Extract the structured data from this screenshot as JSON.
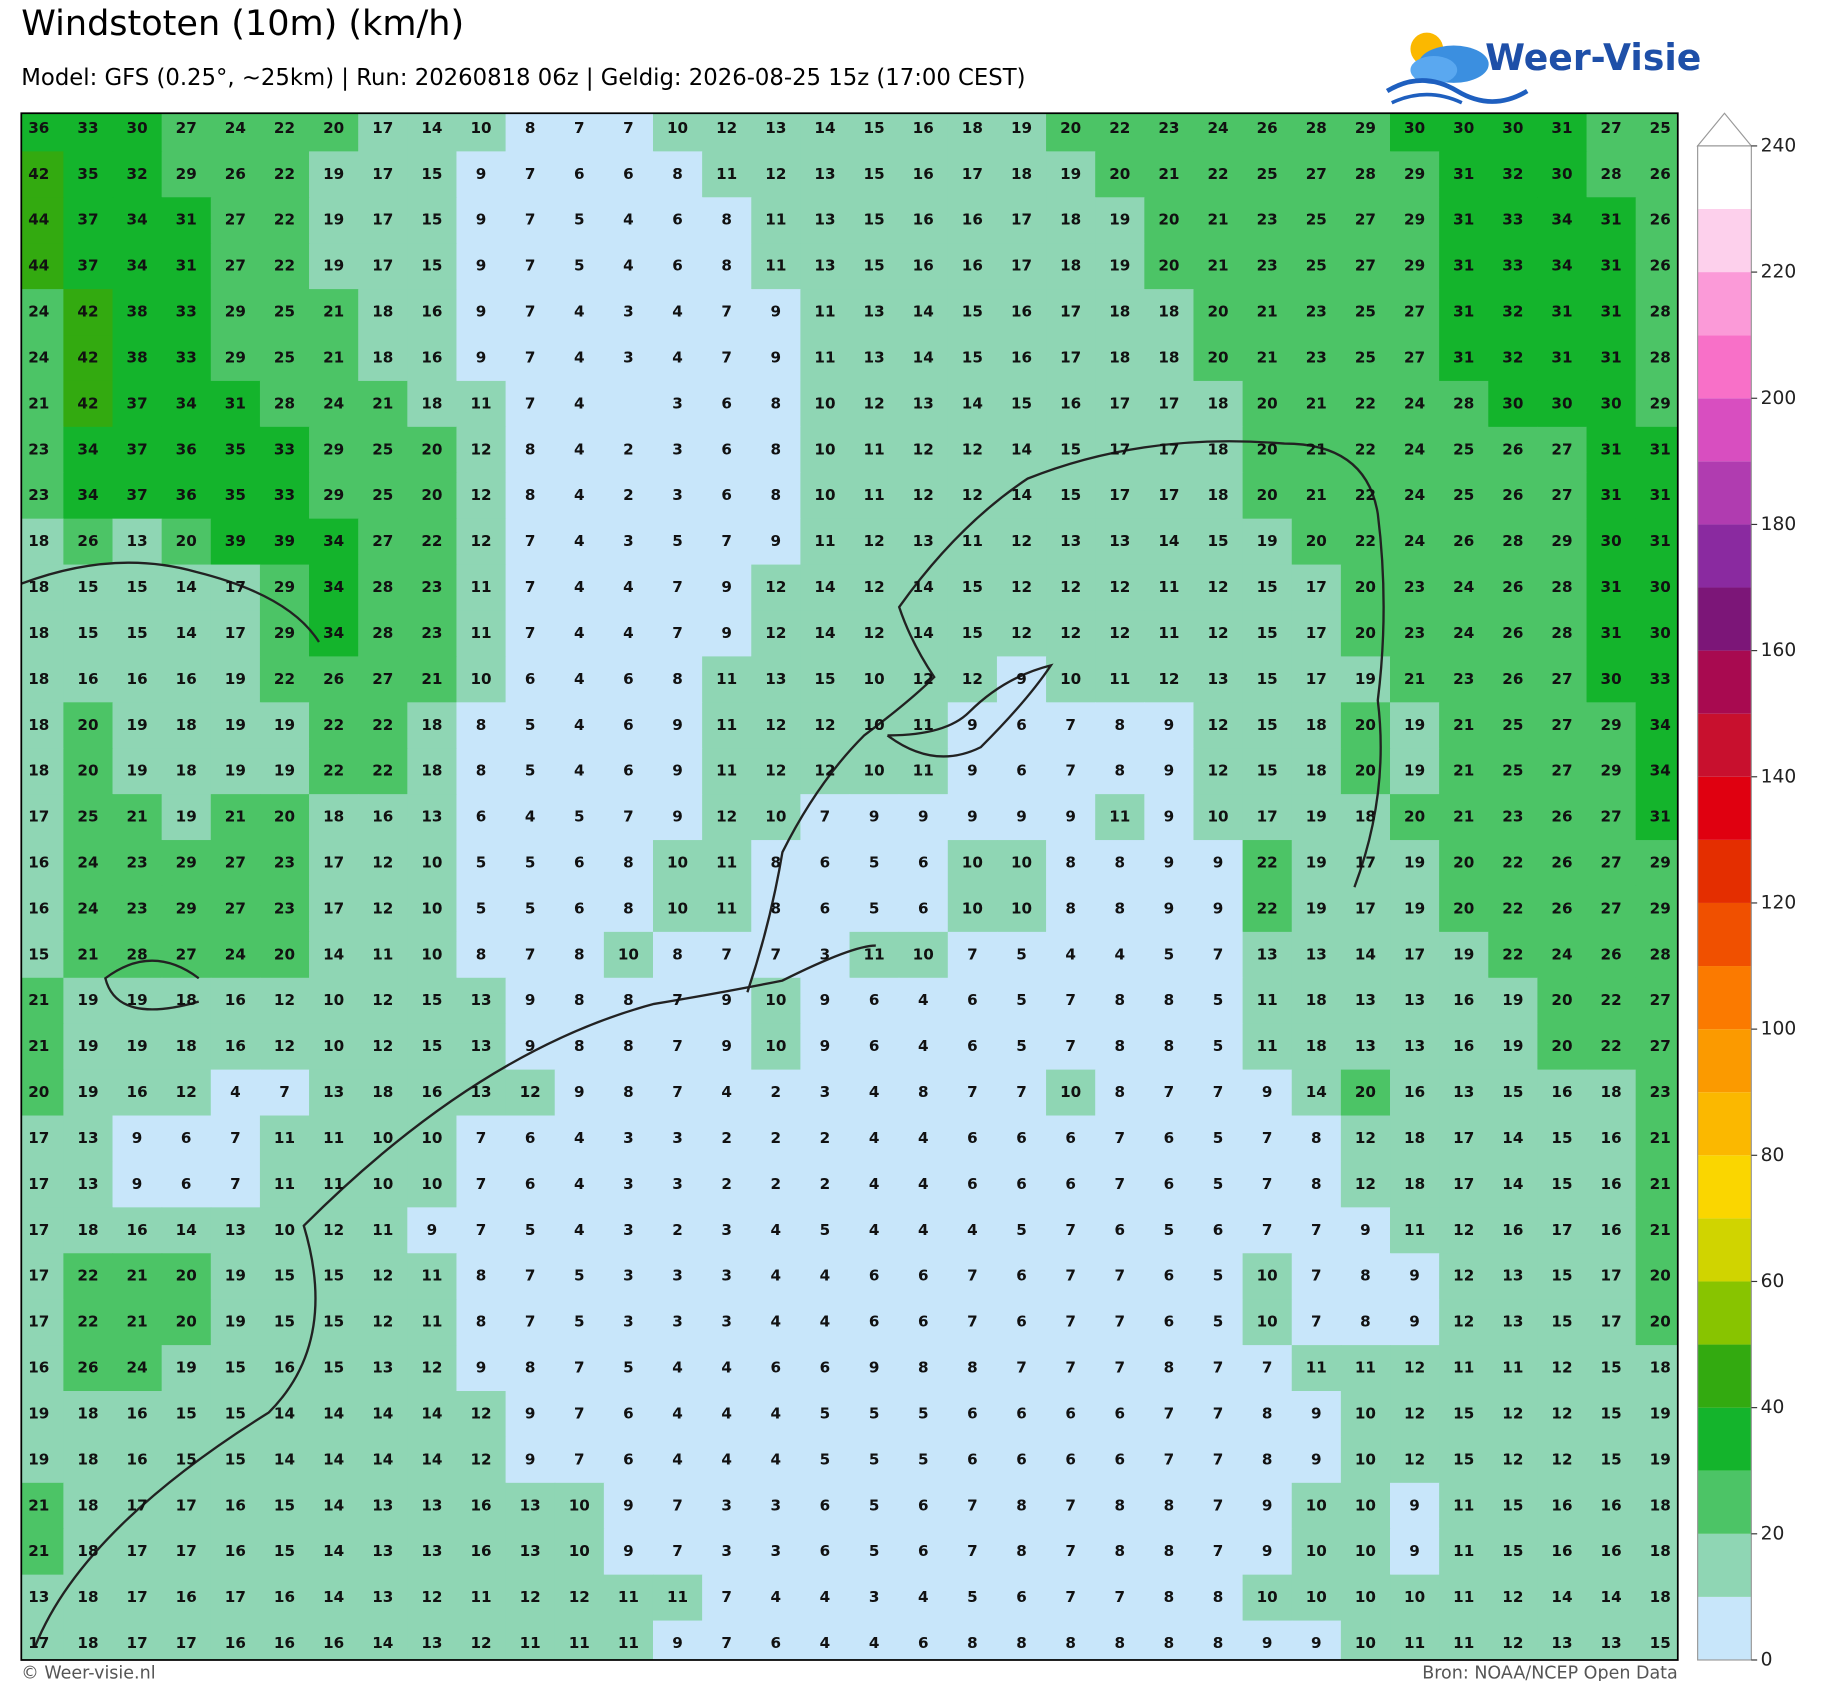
{
  "header": {
    "title": "Windstoten (10m) (km/h)",
    "subtitle": "Model: GFS (0.25°, ~25km)  |  Run: 20260818 06z  |  Geldig: 2026-08-25 15z (17:00 CEST)"
  },
  "logo": "Weer-Visie",
  "footer": {
    "left": "© Weer-visie.nl",
    "right": "Bron: NOAA/NCEP Open Data"
  },
  "grid": {
    "values": [
      [
        36,
        33,
        30,
        27,
        24,
        22,
        20,
        17,
        14,
        10,
        8,
        7,
        7,
        10,
        12,
        13,
        14,
        15,
        16,
        18,
        19,
        20,
        22,
        23,
        24,
        26,
        28,
        29,
        30,
        30,
        30,
        31,
        27,
        25
      ],
      [
        42,
        35,
        32,
        29,
        26,
        22,
        19,
        17,
        15,
        9,
        7,
        6,
        6,
        8,
        11,
        12,
        13,
        15,
        16,
        17,
        18,
        19,
        20,
        21,
        22,
        25,
        27,
        28,
        29,
        31,
        32,
        30,
        28,
        26
      ],
      [
        44,
        37,
        34,
        31,
        27,
        22,
        19,
        17,
        15,
        9,
        7,
        5,
        4,
        6,
        8,
        11,
        13,
        15,
        16,
        16,
        17,
        18,
        19,
        20,
        21,
        23,
        25,
        27,
        29,
        31,
        33,
        34,
        31,
        26
      ],
      [
        44,
        37,
        34,
        31,
        27,
        22,
        19,
        17,
        15,
        9,
        7,
        5,
        4,
        6,
        8,
        11,
        13,
        15,
        16,
        16,
        17,
        18,
        19,
        20,
        21,
        23,
        25,
        27,
        29,
        31,
        33,
        34,
        31,
        26
      ],
      [
        24,
        42,
        38,
        33,
        29,
        25,
        21,
        18,
        16,
        9,
        7,
        4,
        3,
        4,
        7,
        9,
        11,
        13,
        14,
        15,
        16,
        17,
        18,
        18,
        20,
        21,
        23,
        25,
        27,
        31,
        32,
        31,
        31,
        28
      ],
      [
        24,
        42,
        38,
        33,
        29,
        25,
        21,
        18,
        16,
        9,
        7,
        4,
        3,
        4,
        7,
        9,
        11,
        13,
        14,
        15,
        16,
        17,
        18,
        18,
        20,
        21,
        23,
        25,
        27,
        31,
        32,
        31,
        31,
        28
      ],
      [
        21,
        42,
        37,
        34,
        31,
        28,
        24,
        21,
        18,
        11,
        7,
        4,
        null,
        3,
        6,
        8,
        10,
        12,
        13,
        14,
        15,
        16,
        17,
        17,
        18,
        20,
        21,
        22,
        24,
        28,
        30,
        30,
        30,
        29
      ],
      [
        23,
        34,
        37,
        36,
        35,
        33,
        29,
        25,
        20,
        12,
        8,
        4,
        2,
        3,
        6,
        8,
        10,
        11,
        12,
        12,
        14,
        15,
        17,
        17,
        18,
        20,
        21,
        22,
        24,
        25,
        26,
        27,
        31,
        31
      ],
      [
        23,
        34,
        37,
        36,
        35,
        33,
        29,
        25,
        20,
        12,
        8,
        4,
        2,
        3,
        6,
        8,
        10,
        11,
        12,
        12,
        14,
        15,
        17,
        17,
        18,
        20,
        21,
        22,
        24,
        25,
        26,
        27,
        31,
        31
      ],
      [
        18,
        26,
        13,
        20,
        39,
        39,
        34,
        27,
        22,
        12,
        7,
        4,
        3,
        5,
        7,
        9,
        11,
        12,
        13,
        11,
        12,
        13,
        13,
        14,
        15,
        19,
        20,
        22,
        24,
        26,
        28,
        29,
        30,
        31
      ],
      [
        18,
        15,
        15,
        14,
        17,
        29,
        34,
        28,
        23,
        11,
        7,
        4,
        4,
        7,
        9,
        12,
        14,
        12,
        14,
        15,
        12,
        12,
        12,
        11,
        12,
        15,
        17,
        20,
        23,
        24,
        26,
        28,
        31,
        30
      ],
      [
        18,
        15,
        15,
        14,
        17,
        29,
        34,
        28,
        23,
        11,
        7,
        4,
        4,
        7,
        9,
        12,
        14,
        12,
        14,
        15,
        12,
        12,
        12,
        11,
        12,
        15,
        17,
        20,
        23,
        24,
        26,
        28,
        31,
        30
      ],
      [
        18,
        16,
        16,
        16,
        19,
        22,
        26,
        27,
        21,
        10,
        6,
        4,
        6,
        8,
        11,
        13,
        15,
        10,
        12,
        12,
        9,
        10,
        11,
        12,
        13,
        15,
        17,
        19,
        21,
        23,
        26,
        27,
        30,
        33
      ],
      [
        18,
        20,
        19,
        18,
        19,
        19,
        22,
        22,
        18,
        8,
        5,
        4,
        6,
        9,
        11,
        12,
        12,
        10,
        11,
        9,
        6,
        7,
        8,
        9,
        12,
        15,
        18,
        20,
        19,
        21,
        25,
        27,
        29,
        34
      ],
      [
        18,
        20,
        19,
        18,
        19,
        19,
        22,
        22,
        18,
        8,
        5,
        4,
        6,
        9,
        11,
        12,
        12,
        10,
        11,
        9,
        6,
        7,
        8,
        9,
        12,
        15,
        18,
        20,
        19,
        21,
        25,
        27,
        29,
        34
      ],
      [
        17,
        25,
        21,
        19,
        21,
        20,
        18,
        16,
        13,
        6,
        4,
        5,
        7,
        9,
        12,
        10,
        7,
        9,
        9,
        9,
        9,
        9,
        11,
        9,
        10,
        17,
        19,
        18,
        20,
        21,
        23,
        26,
        27,
        31
      ],
      [
        16,
        24,
        23,
        29,
        27,
        23,
        17,
        12,
        10,
        5,
        5,
        6,
        8,
        10,
        11,
        8,
        6,
        5,
        6,
        10,
        10,
        8,
        8,
        9,
        9,
        22,
        19,
        17,
        19,
        20,
        22,
        26,
        27,
        29
      ],
      [
        16,
        24,
        23,
        29,
        27,
        23,
        17,
        12,
        10,
        5,
        5,
        6,
        8,
        10,
        11,
        8,
        6,
        5,
        6,
        10,
        10,
        8,
        8,
        9,
        9,
        22,
        19,
        17,
        19,
        20,
        22,
        26,
        27,
        29
      ],
      [
        15,
        21,
        28,
        27,
        24,
        20,
        14,
        11,
        10,
        8,
        7,
        8,
        10,
        8,
        7,
        7,
        3,
        11,
        10,
        7,
        5,
        4,
        4,
        5,
        7,
        13,
        13,
        14,
        17,
        19,
        22,
        24,
        26,
        28
      ],
      [
        21,
        19,
        19,
        18,
        16,
        12,
        10,
        12,
        15,
        13,
        9,
        8,
        8,
        7,
        9,
        10,
        9,
        6,
        4,
        6,
        5,
        7,
        8,
        8,
        5,
        11,
        18,
        13,
        13,
        16,
        19,
        20,
        22,
        27
      ],
      [
        21,
        19,
        19,
        18,
        16,
        12,
        10,
        12,
        15,
        13,
        9,
        8,
        8,
        7,
        9,
        10,
        9,
        6,
        4,
        6,
        5,
        7,
        8,
        8,
        5,
        11,
        18,
        13,
        13,
        16,
        19,
        20,
        22,
        27
      ],
      [
        20,
        19,
        16,
        12,
        4,
        7,
        13,
        18,
        16,
        13,
        12,
        9,
        8,
        7,
        4,
        2,
        3,
        4,
        8,
        7,
        7,
        10,
        8,
        7,
        7,
        9,
        14,
        20,
        16,
        13,
        15,
        16,
        18,
        23
      ],
      [
        17,
        13,
        9,
        6,
        7,
        11,
        11,
        10,
        10,
        7,
        6,
        4,
        3,
        3,
        2,
        2,
        2,
        4,
        4,
        6,
        6,
        6,
        7,
        6,
        5,
        7,
        8,
        12,
        18,
        17,
        14,
        15,
        16,
        21
      ],
      [
        17,
        13,
        9,
        6,
        7,
        11,
        11,
        10,
        10,
        7,
        6,
        4,
        3,
        3,
        2,
        2,
        2,
        4,
        4,
        6,
        6,
        6,
        7,
        6,
        5,
        7,
        8,
        12,
        18,
        17,
        14,
        15,
        16,
        21
      ],
      [
        17,
        18,
        16,
        14,
        13,
        10,
        12,
        11,
        9,
        7,
        5,
        4,
        3,
        2,
        3,
        4,
        5,
        4,
        4,
        4,
        5,
        7,
        6,
        5,
        6,
        7,
        7,
        9,
        11,
        12,
        16,
        17,
        16,
        21
      ],
      [
        17,
        22,
        21,
        20,
        19,
        15,
        15,
        12,
        11,
        8,
        7,
        5,
        3,
        3,
        3,
        4,
        4,
        6,
        6,
        7,
        6,
        7,
        7,
        6,
        5,
        10,
        7,
        8,
        9,
        12,
        13,
        15,
        17,
        20
      ],
      [
        17,
        22,
        21,
        20,
        19,
        15,
        15,
        12,
        11,
        8,
        7,
        5,
        3,
        3,
        3,
        4,
        4,
        6,
        6,
        7,
        6,
        7,
        7,
        6,
        5,
        10,
        7,
        8,
        9,
        12,
        13,
        15,
        17,
        20
      ],
      [
        16,
        26,
        24,
        19,
        15,
        16,
        15,
        13,
        12,
        9,
        8,
        7,
        5,
        4,
        4,
        6,
        6,
        9,
        8,
        8,
        7,
        7,
        7,
        8,
        7,
        7,
        11,
        11,
        12,
        11,
        11,
        12,
        15,
        18
      ],
      [
        19,
        18,
        16,
        15,
        15,
        14,
        14,
        14,
        14,
        12,
        9,
        7,
        6,
        4,
        4,
        4,
        5,
        5,
        5,
        6,
        6,
        6,
        6,
        7,
        7,
        8,
        9,
        10,
        12,
        15,
        12,
        12,
        15,
        19
      ],
      [
        19,
        18,
        16,
        15,
        15,
        14,
        14,
        14,
        14,
        12,
        9,
        7,
        6,
        4,
        4,
        4,
        5,
        5,
        5,
        6,
        6,
        6,
        6,
        7,
        7,
        8,
        9,
        10,
        12,
        15,
        12,
        12,
        15,
        19
      ],
      [
        21,
        18,
        17,
        17,
        16,
        15,
        14,
        13,
        13,
        16,
        13,
        10,
        9,
        7,
        3,
        3,
        6,
        5,
        6,
        7,
        8,
        7,
        8,
        8,
        7,
        9,
        10,
        10,
        9,
        11,
        15,
        16,
        16,
        18
      ],
      [
        21,
        18,
        17,
        17,
        16,
        15,
        14,
        13,
        13,
        16,
        13,
        10,
        9,
        7,
        3,
        3,
        6,
        5,
        6,
        7,
        8,
        7,
        8,
        8,
        7,
        9,
        10,
        10,
        9,
        11,
        15,
        16,
        16,
        18
      ],
      [
        13,
        18,
        17,
        16,
        17,
        16,
        14,
        13,
        12,
        11,
        12,
        12,
        11,
        11,
        7,
        4,
        4,
        3,
        4,
        5,
        6,
        7,
        7,
        8,
        8,
        10,
        10,
        10,
        10,
        11,
        12,
        14,
        14,
        18
      ],
      [
        17,
        18,
        17,
        17,
        16,
        16,
        16,
        14,
        13,
        12,
        11,
        11,
        11,
        9,
        7,
        6,
        4,
        4,
        6,
        8,
        8,
        8,
        8,
        8,
        8,
        9,
        9,
        10,
        11,
        11,
        12,
        13,
        13,
        15
      ]
    ]
  },
  "colorbar": {
    "lim": [
      0,
      240
    ],
    "ticks": [
      0,
      20,
      40,
      60,
      80,
      100,
      120,
      140,
      160,
      180,
      200,
      220,
      240
    ],
    "colors": [
      "#c8e6fa",
      "#8fd6b4",
      "#4cc466",
      "#14b42c",
      "#33aa10",
      "#88c400",
      "#d0d400",
      "#fad600",
      "#fbb800",
      "#fb9a00",
      "#fb7a00",
      "#f05000",
      "#e42e00",
      "#e00010",
      "#c8102e",
      "#a80a50",
      "#7c1678",
      "#8a2aa0",
      "#b03cb0",
      "#d84ec0",
      "#f870c8",
      "#fb9ad8",
      "#fdd0ec",
      "#ffffff"
    ]
  }
}
